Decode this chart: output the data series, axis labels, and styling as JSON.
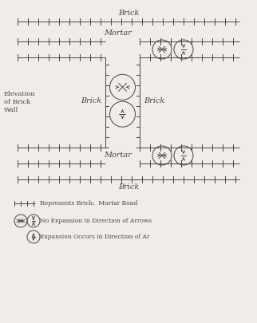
{
  "bg_color": "#f0ede8",
  "line_color": "#444444",
  "top_brick_label": "Brick",
  "top_mortar_label": "Mortar",
  "left_label_line1": "Elevation",
  "left_label_line2": "of Brick",
  "left_label_line3": "Wall",
  "mid_brick_left": "Brick",
  "mid_brick_right": "Brick",
  "bottom_mortar_label": "Mortar",
  "bottom_brick_label": "Brick",
  "legend_bond": "Represents Brick:  Mortar Bond",
  "legend_no_exp": "No Expansion in Direction of Arrows",
  "legend_exp": "Expansion Occurs in Direction of Ar",
  "fig_w": 3.22,
  "fig_h": 4.05,
  "dpi": 100
}
